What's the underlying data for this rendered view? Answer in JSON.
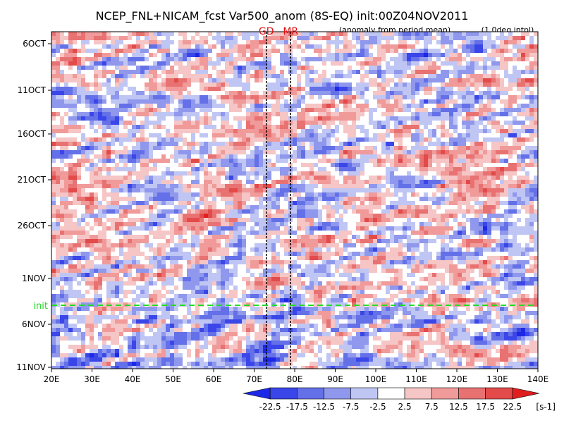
{
  "chart_data": {
    "type": "heatmap",
    "title": "NCEP_FNL+NICAM_fcst Var500_anom (8S-EQ) init:00Z04NOV2011",
    "subtitle_left": "(anomaly from period mean)",
    "subtitle_right": "(1.0deg intpl)",
    "x_ticks": [
      "20E",
      "30E",
      "40E",
      "50E",
      "60E",
      "70E",
      "80E",
      "90E",
      "100E",
      "110E",
      "120E",
      "130E",
      "140E"
    ],
    "x_range_deg": [
      20,
      140
    ],
    "y_ticks": [
      "6OCT",
      "11OCT",
      "16OCT",
      "21OCT",
      "26OCT",
      "1NOV",
      "6NOV",
      "11NOV"
    ],
    "y_axis_direction": "time increases downward",
    "markers": [
      {
        "label": "GD",
        "lon": 73
      },
      {
        "label": "MR",
        "lon": 79
      }
    ],
    "init_line": {
      "label": "init",
      "date": "04NOV2011 00Z"
    },
    "colorbar": {
      "levels": [
        "-22.5",
        "-17.5",
        "-12.5",
        "-7.5",
        "-2.5",
        "2.5",
        "7.5",
        "12.5",
        "17.5",
        "22.5"
      ],
      "colors": [
        "#1d28e6",
        "#3a46e8",
        "#6470e8",
        "#8f98ec",
        "#c0c6f4",
        "#ffffff",
        "#f6c5c5",
        "#f09a9a",
        "#e87272",
        "#e34a4a",
        "#e01e1e"
      ],
      "units": "[s-1]"
    },
    "grid": false
  },
  "colors": {
    "init_line": "#22dd22",
    "marker_text": "#e01010",
    "frame": "#000000"
  }
}
